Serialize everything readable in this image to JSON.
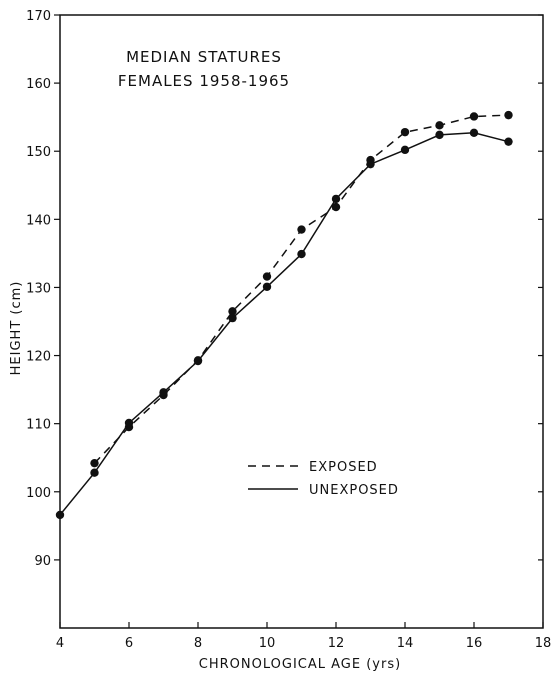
{
  "chart_data": {
    "type": "line",
    "title_lines": [
      "MEDIAN STATURES",
      "FEMALES 1958-1965"
    ],
    "xlabel": "CHRONOLOGICAL AGE (yrs)",
    "ylabel": "HEIGHT (cm)",
    "xlim": [
      4,
      18
    ],
    "ylim": [
      80,
      170
    ],
    "x_ticks": [
      4,
      6,
      8,
      10,
      12,
      14,
      16,
      18
    ],
    "y_ticks": [
      90,
      100,
      110,
      120,
      130,
      140,
      150,
      160,
      170
    ],
    "grid": false,
    "legend_position": "lower-right",
    "series": [
      {
        "name": "EXPOSED",
        "style": "dashed",
        "x": [
          5,
          6,
          7,
          8,
          9,
          10,
          11,
          12,
          13,
          14,
          15,
          16,
          17
        ],
        "y": [
          104.2,
          109.5,
          114.2,
          119.3,
          126.5,
          131.6,
          138.5,
          141.8,
          148.7,
          152.8,
          153.8,
          155.1,
          155.3
        ]
      },
      {
        "name": "UNEXPOSED",
        "style": "solid",
        "x": [
          4,
          5,
          6,
          7,
          8,
          9,
          10,
          11,
          12,
          13,
          14,
          15,
          16,
          17
        ],
        "y": [
          96.6,
          102.8,
          110.1,
          114.6,
          119.2,
          125.5,
          130.1,
          134.9,
          143.0,
          148.1,
          150.2,
          152.4,
          152.7,
          151.4
        ]
      }
    ]
  }
}
